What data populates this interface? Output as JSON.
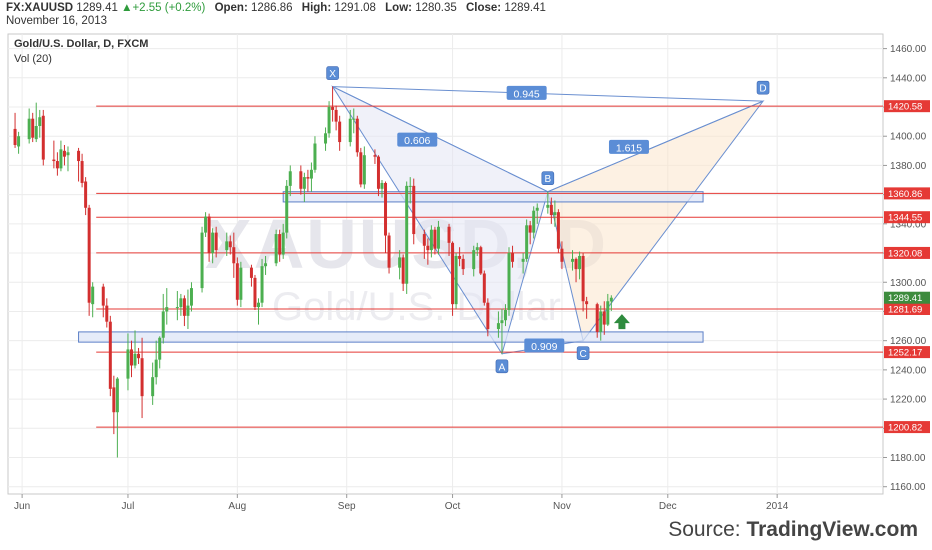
{
  "header": {
    "symbol": "FX:XAUUSD",
    "last": "1289.41",
    "change": "+2.55 (+0.2%)",
    "open_label": "Open:",
    "open": "1286.86",
    "high_label": "High:",
    "high": "1291.08",
    "low_label": "Low:",
    "low": "1280.35",
    "close_label": "Close:",
    "close": "1289.41",
    "date": "November 16, 2013"
  },
  "legend": {
    "title": "Gold/U.S. Dollar, D, FXCM",
    "volume": "Vol (20)"
  },
  "watermark": {
    "ticker": "XAUUSD, D",
    "name": "Gold/U.S. Dollar"
  },
  "source": {
    "prefix": "Source: ",
    "brand": "TradingView.com"
  },
  "colors": {
    "up": "#4caf50",
    "down": "#d32f2f",
    "level": "#e53935",
    "pattern": "#6a8fd0",
    "label_bg": "#5b8dd6",
    "last_price": "#3d8b3d"
  },
  "chart_data": {
    "type": "candlestick",
    "title": "Gold/U.S. Dollar, D, FXCM",
    "ylim": [
      1155,
      1470
    ],
    "y_ticks": [
      1160,
      1180,
      1200,
      1220,
      1240,
      1260,
      1280,
      1300,
      1320,
      1340,
      1360,
      1380,
      1400,
      1420,
      1440,
      1460
    ],
    "x_ticks": [
      {
        "label": "Jun",
        "date": "2013-06-01"
      },
      {
        "label": "Jul",
        "date": "2013-07-01"
      },
      {
        "label": "Aug",
        "date": "2013-08-01"
      },
      {
        "label": "Sep",
        "date": "2013-09-01"
      },
      {
        "label": "Oct",
        "date": "2013-10-01"
      },
      {
        "label": "Nov",
        "date": "2013-11-01"
      },
      {
        "label": "Dec",
        "date": "2013-12-01"
      },
      {
        "label": "2014",
        "date": "2014-01-01"
      }
    ],
    "x_range": [
      "2013-05-28",
      "2014-01-31"
    ],
    "levels": [
      1420.58,
      1360.86,
      1344.55,
      1320.08,
      1281.69,
      1252.17,
      1200.82
    ],
    "last_price": 1289.41,
    "zones": [
      {
        "y_low": 1355,
        "y_high": 1362,
        "from": "2013-08-14",
        "to": "2013-12-11"
      },
      {
        "y_low": 1259,
        "y_high": 1266,
        "from": "2013-06-17",
        "to": "2013-12-11"
      }
    ],
    "pattern_points": [
      {
        "name": "X",
        "date": "2013-08-28",
        "value": 1434
      },
      {
        "name": "A",
        "date": "2013-10-15",
        "value": 1251
      },
      {
        "name": "B",
        "date": "2013-10-28",
        "value": 1362
      },
      {
        "name": "C",
        "date": "2013-11-07",
        "value": 1260
      },
      {
        "name": "D",
        "date": "2013-12-28",
        "value": 1424
      }
    ],
    "ratios": [
      {
        "label": "0.606",
        "date": "2013-09-21",
        "value": 1397
      },
      {
        "label": "0.945",
        "date": "2013-10-22",
        "value": 1429
      },
      {
        "label": "1.615",
        "date": "2013-11-20",
        "value": 1392
      },
      {
        "label": "0.909",
        "date": "2013-10-27",
        "value": 1256
      }
    ],
    "candles": [
      {
        "d": "2013-05-30",
        "o": 1405,
        "h": 1416,
        "l": 1392,
        "c": 1394
      },
      {
        "d": "2013-05-31",
        "o": 1393,
        "h": 1403,
        "l": 1388,
        "c": 1400
      },
      {
        "d": "2013-06-03",
        "o": 1398,
        "h": 1419,
        "l": 1395,
        "c": 1412
      },
      {
        "d": "2013-06-04",
        "o": 1412,
        "h": 1416,
        "l": 1396,
        "c": 1399
      },
      {
        "d": "2013-06-05",
        "o": 1398,
        "h": 1423,
        "l": 1396,
        "c": 1407
      },
      {
        "d": "2013-06-06",
        "o": 1407,
        "h": 1418,
        "l": 1399,
        "c": 1413
      },
      {
        "d": "2013-06-07",
        "o": 1414,
        "h": 1418,
        "l": 1380,
        "c": 1384
      },
      {
        "d": "2013-06-10",
        "o": 1384,
        "h": 1397,
        "l": 1378,
        "c": 1383
      },
      {
        "d": "2013-06-11",
        "o": 1383,
        "h": 1389,
        "l": 1373,
        "c": 1378
      },
      {
        "d": "2013-06-12",
        "o": 1378,
        "h": 1397,
        "l": 1376,
        "c": 1391
      },
      {
        "d": "2013-06-13",
        "o": 1390,
        "h": 1394,
        "l": 1380,
        "c": 1386
      },
      {
        "d": "2013-06-14",
        "o": 1387,
        "h": 1393,
        "l": 1376,
        "c": 1389
      },
      {
        "d": "2013-06-17",
        "o": 1390,
        "h": 1392,
        "l": 1369,
        "c": 1383
      },
      {
        "d": "2013-06-18",
        "o": 1383,
        "h": 1388,
        "l": 1365,
        "c": 1368
      },
      {
        "d": "2013-06-19",
        "o": 1369,
        "h": 1372,
        "l": 1346,
        "c": 1351
      },
      {
        "d": "2013-06-20",
        "o": 1351,
        "h": 1353,
        "l": 1277,
        "c": 1286
      },
      {
        "d": "2013-06-21",
        "o": 1285,
        "h": 1300,
        "l": 1276,
        "c": 1297
      },
      {
        "d": "2013-06-24",
        "o": 1297,
        "h": 1299,
        "l": 1276,
        "c": 1284
      },
      {
        "d": "2013-06-25",
        "o": 1284,
        "h": 1289,
        "l": 1269,
        "c": 1273
      },
      {
        "d": "2013-06-26",
        "o": 1273,
        "h": 1277,
        "l": 1222,
        "c": 1227
      },
      {
        "d": "2013-06-27",
        "o": 1228,
        "h": 1236,
        "l": 1196,
        "c": 1211
      },
      {
        "d": "2013-06-28",
        "o": 1211,
        "h": 1235,
        "l": 1180,
        "c": 1234
      },
      {
        "d": "2013-07-01",
        "o": 1234,
        "h": 1265,
        "l": 1226,
        "c": 1254
      },
      {
        "d": "2013-07-02",
        "o": 1254,
        "h": 1260,
        "l": 1235,
        "c": 1243
      },
      {
        "d": "2013-07-03",
        "o": 1243,
        "h": 1267,
        "l": 1241,
        "c": 1251
      },
      {
        "d": "2013-07-04",
        "o": 1251,
        "h": 1255,
        "l": 1244,
        "c": 1248
      },
      {
        "d": "2013-07-05",
        "o": 1248,
        "h": 1262,
        "l": 1207,
        "c": 1222
      },
      {
        "d": "2013-07-08",
        "o": 1222,
        "h": 1245,
        "l": 1216,
        "c": 1235
      },
      {
        "d": "2013-07-09",
        "o": 1235,
        "h": 1260,
        "l": 1230,
        "c": 1247
      },
      {
        "d": "2013-07-10",
        "o": 1247,
        "h": 1263,
        "l": 1241,
        "c": 1262
      },
      {
        "d": "2013-07-11",
        "o": 1262,
        "h": 1292,
        "l": 1258,
        "c": 1280
      },
      {
        "d": "2013-07-12",
        "o": 1280,
        "h": 1296,
        "l": 1271,
        "c": 1283
      },
      {
        "d": "2013-07-15",
        "o": 1283,
        "h": 1294,
        "l": 1274,
        "c": 1283
      },
      {
        "d": "2013-07-16",
        "o": 1283,
        "h": 1292,
        "l": 1277,
        "c": 1289
      },
      {
        "d": "2013-07-17",
        "o": 1289,
        "h": 1291,
        "l": 1270,
        "c": 1277
      },
      {
        "d": "2013-07-18",
        "o": 1277,
        "h": 1295,
        "l": 1268,
        "c": 1284
      },
      {
        "d": "2013-07-19",
        "o": 1284,
        "h": 1300,
        "l": 1280,
        "c": 1296
      },
      {
        "d": "2013-07-22",
        "o": 1296,
        "h": 1338,
        "l": 1293,
        "c": 1334
      },
      {
        "d": "2013-07-23",
        "o": 1334,
        "h": 1348,
        "l": 1331,
        "c": 1345
      },
      {
        "d": "2013-07-24",
        "o": 1345,
        "h": 1347,
        "l": 1314,
        "c": 1320
      },
      {
        "d": "2013-07-25",
        "o": 1320,
        "h": 1337,
        "l": 1313,
        "c": 1334
      },
      {
        "d": "2013-07-26",
        "o": 1334,
        "h": 1338,
        "l": 1317,
        "c": 1322
      },
      {
        "d": "2013-07-29",
        "o": 1322,
        "h": 1334,
        "l": 1318,
        "c": 1328
      },
      {
        "d": "2013-07-30",
        "o": 1328,
        "h": 1332,
        "l": 1319,
        "c": 1324
      },
      {
        "d": "2013-07-31",
        "o": 1324,
        "h": 1334,
        "l": 1303,
        "c": 1313
      },
      {
        "d": "2013-08-01",
        "o": 1313,
        "h": 1317,
        "l": 1284,
        "c": 1288
      },
      {
        "d": "2013-08-02",
        "o": 1288,
        "h": 1314,
        "l": 1283,
        "c": 1310
      },
      {
        "d": "2013-08-05",
        "o": 1310,
        "h": 1312,
        "l": 1297,
        "c": 1303
      },
      {
        "d": "2013-08-06",
        "o": 1303,
        "h": 1305,
        "l": 1281,
        "c": 1283
      },
      {
        "d": "2013-08-07",
        "o": 1283,
        "h": 1289,
        "l": 1271,
        "c": 1286
      },
      {
        "d": "2013-08-08",
        "o": 1286,
        "h": 1316,
        "l": 1283,
        "c": 1311
      },
      {
        "d": "2013-08-09",
        "o": 1311,
        "h": 1318,
        "l": 1305,
        "c": 1313
      },
      {
        "d": "2013-08-12",
        "o": 1313,
        "h": 1336,
        "l": 1311,
        "c": 1333
      },
      {
        "d": "2013-08-13",
        "o": 1333,
        "h": 1336,
        "l": 1314,
        "c": 1319
      },
      {
        "d": "2013-08-14",
        "o": 1319,
        "h": 1340,
        "l": 1316,
        "c": 1334
      },
      {
        "d": "2013-08-15",
        "o": 1334,
        "h": 1370,
        "l": 1330,
        "c": 1366
      },
      {
        "d": "2013-08-16",
        "o": 1366,
        "h": 1380,
        "l": 1359,
        "c": 1376
      },
      {
        "d": "2013-08-19",
        "o": 1376,
        "h": 1380,
        "l": 1360,
        "c": 1364
      },
      {
        "d": "2013-08-20",
        "o": 1364,
        "h": 1375,
        "l": 1355,
        "c": 1372
      },
      {
        "d": "2013-08-21",
        "o": 1372,
        "h": 1377,
        "l": 1362,
        "c": 1371
      },
      {
        "d": "2013-08-22",
        "o": 1371,
        "h": 1382,
        "l": 1362,
        "c": 1377
      },
      {
        "d": "2013-08-23",
        "o": 1377,
        "h": 1400,
        "l": 1375,
        "c": 1395
      },
      {
        "d": "2013-08-26",
        "o": 1395,
        "h": 1406,
        "l": 1390,
        "c": 1402
      },
      {
        "d": "2013-08-27",
        "o": 1402,
        "h": 1424,
        "l": 1399,
        "c": 1420
      },
      {
        "d": "2013-08-28",
        "o": 1420,
        "h": 1434,
        "l": 1410,
        "c": 1418
      },
      {
        "d": "2013-08-29",
        "o": 1418,
        "h": 1421,
        "l": 1404,
        "c": 1410
      },
      {
        "d": "2013-08-30",
        "o": 1410,
        "h": 1414,
        "l": 1390,
        "c": 1396
      },
      {
        "d": "2013-09-02",
        "o": 1396,
        "h": 1418,
        "l": 1393,
        "c": 1412
      },
      {
        "d": "2013-09-03",
        "o": 1412,
        "h": 1419,
        "l": 1402,
        "c": 1412
      },
      {
        "d": "2013-09-04",
        "o": 1412,
        "h": 1414,
        "l": 1386,
        "c": 1389
      },
      {
        "d": "2013-09-05",
        "o": 1389,
        "h": 1392,
        "l": 1365,
        "c": 1367
      },
      {
        "d": "2013-09-06",
        "o": 1367,
        "h": 1393,
        "l": 1364,
        "c": 1387
      },
      {
        "d": "2013-09-09",
        "o": 1387,
        "h": 1391,
        "l": 1381,
        "c": 1386
      },
      {
        "d": "2013-09-10",
        "o": 1386,
        "h": 1387,
        "l": 1359,
        "c": 1364
      },
      {
        "d": "2013-09-11",
        "o": 1364,
        "h": 1370,
        "l": 1358,
        "c": 1368
      },
      {
        "d": "2013-09-12",
        "o": 1368,
        "h": 1369,
        "l": 1320,
        "c": 1332
      },
      {
        "d": "2013-09-13",
        "o": 1332,
        "h": 1334,
        "l": 1306,
        "c": 1310
      },
      {
        "d": "2013-09-16",
        "o": 1310,
        "h": 1322,
        "l": 1302,
        "c": 1317
      },
      {
        "d": "2013-09-17",
        "o": 1317,
        "h": 1319,
        "l": 1294,
        "c": 1299
      },
      {
        "d": "2013-09-18",
        "o": 1299,
        "h": 1369,
        "l": 1292,
        "c": 1366
      },
      {
        "d": "2013-09-19",
        "o": 1366,
        "h": 1372,
        "l": 1354,
        "c": 1366
      },
      {
        "d": "2013-09-20",
        "o": 1366,
        "h": 1371,
        "l": 1326,
        "c": 1333
      },
      {
        "d": "2013-09-23",
        "o": 1333,
        "h": 1336,
        "l": 1316,
        "c": 1325
      },
      {
        "d": "2013-09-24",
        "o": 1325,
        "h": 1330,
        "l": 1312,
        "c": 1322
      },
      {
        "d": "2013-09-25",
        "o": 1322,
        "h": 1339,
        "l": 1317,
        "c": 1336
      },
      {
        "d": "2013-09-26",
        "o": 1336,
        "h": 1338,
        "l": 1319,
        "c": 1323
      },
      {
        "d": "2013-09-27",
        "o": 1323,
        "h": 1342,
        "l": 1319,
        "c": 1338
      },
      {
        "d": "2013-09-30",
        "o": 1338,
        "h": 1340,
        "l": 1318,
        "c": 1327
      },
      {
        "d": "2013-10-01",
        "o": 1327,
        "h": 1328,
        "l": 1277,
        "c": 1285
      },
      {
        "d": "2013-10-02",
        "o": 1285,
        "h": 1320,
        "l": 1282,
        "c": 1318
      },
      {
        "d": "2013-10-03",
        "o": 1318,
        "h": 1324,
        "l": 1311,
        "c": 1316
      },
      {
        "d": "2013-10-04",
        "o": 1316,
        "h": 1319,
        "l": 1305,
        "c": 1309
      },
      {
        "d": "2013-10-07",
        "o": 1309,
        "h": 1325,
        "l": 1304,
        "c": 1322
      },
      {
        "d": "2013-10-08",
        "o": 1322,
        "h": 1327,
        "l": 1318,
        "c": 1324
      },
      {
        "d": "2013-10-09",
        "o": 1324,
        "h": 1325,
        "l": 1305,
        "c": 1306
      },
      {
        "d": "2013-10-10",
        "o": 1306,
        "h": 1308,
        "l": 1284,
        "c": 1286
      },
      {
        "d": "2013-10-11",
        "o": 1286,
        "h": 1289,
        "l": 1263,
        "c": 1268
      },
      {
        "d": "2013-10-14",
        "o": 1268,
        "h": 1280,
        "l": 1262,
        "c": 1272
      },
      {
        "d": "2013-10-15",
        "o": 1272,
        "h": 1282,
        "l": 1251,
        "c": 1274
      },
      {
        "d": "2013-10-16",
        "o": 1274,
        "h": 1285,
        "l": 1270,
        "c": 1281
      },
      {
        "d": "2013-10-17",
        "o": 1281,
        "h": 1324,
        "l": 1277,
        "c": 1320
      },
      {
        "d": "2013-10-18",
        "o": 1320,
        "h": 1325,
        "l": 1310,
        "c": 1314
      },
      {
        "d": "2013-10-21",
        "o": 1314,
        "h": 1320,
        "l": 1306,
        "c": 1316
      },
      {
        "d": "2013-10-22",
        "o": 1316,
        "h": 1343,
        "l": 1314,
        "c": 1339
      },
      {
        "d": "2013-10-23",
        "o": 1339,
        "h": 1342,
        "l": 1326,
        "c": 1334
      },
      {
        "d": "2013-10-24",
        "o": 1334,
        "h": 1352,
        "l": 1330,
        "c": 1349
      },
      {
        "d": "2013-10-25",
        "o": 1349,
        "h": 1354,
        "l": 1340,
        "c": 1351
      },
      {
        "d": "2013-10-28",
        "o": 1351,
        "h": 1362,
        "l": 1347,
        "c": 1353
      },
      {
        "d": "2013-10-29",
        "o": 1353,
        "h": 1358,
        "l": 1340,
        "c": 1346
      },
      {
        "d": "2013-10-30",
        "o": 1346,
        "h": 1356,
        "l": 1338,
        "c": 1348
      },
      {
        "d": "2013-10-31",
        "o": 1348,
        "h": 1350,
        "l": 1320,
        "c": 1323
      },
      {
        "d": "2013-11-01",
        "o": 1323,
        "h": 1328,
        "l": 1309,
        "c": 1314
      },
      {
        "d": "2013-11-04",
        "o": 1314,
        "h": 1322,
        "l": 1308,
        "c": 1316
      },
      {
        "d": "2013-11-05",
        "o": 1316,
        "h": 1317,
        "l": 1300,
        "c": 1309
      },
      {
        "d": "2013-11-06",
        "o": 1309,
        "h": 1321,
        "l": 1302,
        "c": 1318
      },
      {
        "d": "2013-11-07",
        "o": 1318,
        "h": 1320,
        "l": 1280,
        "c": 1287
      },
      {
        "d": "2013-11-08",
        "o": 1287,
        "h": 1290,
        "l": 1275,
        "c": 1285
      },
      {
        "d": "2013-11-11",
        "o": 1285,
        "h": 1286,
        "l": 1262,
        "c": 1266
      },
      {
        "d": "2013-11-12",
        "o": 1266,
        "h": 1284,
        "l": 1260,
        "c": 1280
      },
      {
        "d": "2013-11-13",
        "o": 1280,
        "h": 1287,
        "l": 1264,
        "c": 1271
      },
      {
        "d": "2013-11-14",
        "o": 1271,
        "h": 1292,
        "l": 1270,
        "c": 1287
      },
      {
        "d": "2013-11-15",
        "o": 1286.86,
        "h": 1291.08,
        "l": 1280.35,
        "c": 1289.41
      }
    ]
  }
}
